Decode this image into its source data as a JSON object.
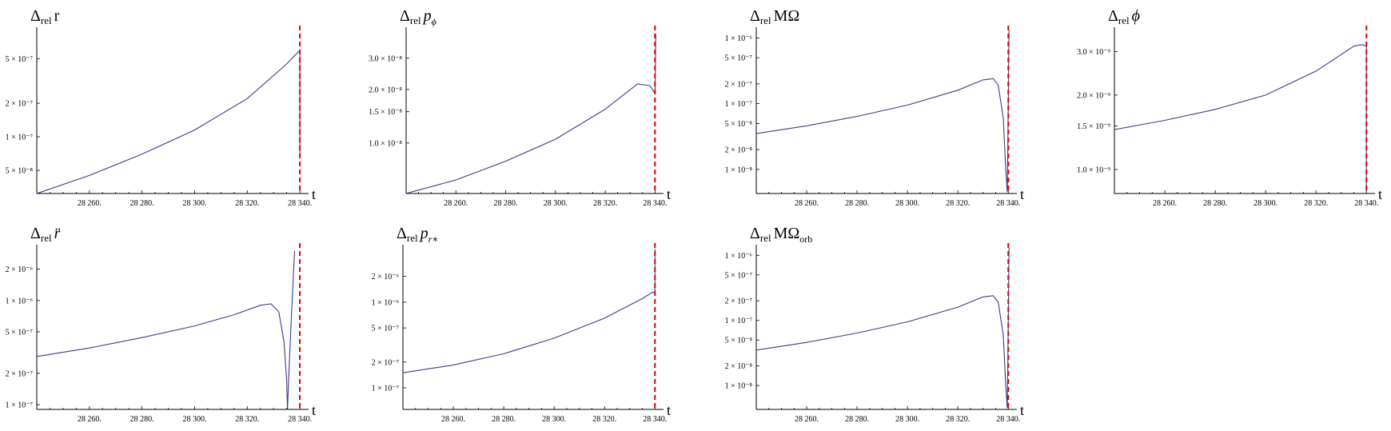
{
  "chart_data": [
    {
      "type": "line",
      "title_main": "Δ",
      "title_sub": "rel",
      "title_var": "r",
      "title_var_sub": "",
      "title_style": "roman",
      "xlabel": "t",
      "x_ticks": [
        "28 260.",
        "28 280.",
        "28 300.",
        "28 320.",
        "28 340."
      ],
      "y_ticks": [
        "5 × 10⁻⁸",
        "1 × 10⁻⁷",
        "2 × 10⁻⁷",
        "5 × 10⁻⁷"
      ],
      "y_scale": "log",
      "vline_x": 28340,
      "series": [
        {
          "x": [
            28240,
            28260,
            28280,
            28300,
            28320,
            28335,
            28339.5,
            28340,
            28340
          ],
          "y": [
            3.1e-08,
            4.5e-08,
            7e-08,
            1.15e-07,
            2.2e-07,
            4.5e-07,
            5.8e-07,
            5.8e-07,
            7e-08
          ]
        }
      ]
    },
    {
      "type": "line",
      "title_main": "Δ",
      "title_sub": "rel",
      "title_var": "p",
      "title_var_sub": "ϕ",
      "title_style": "italic",
      "xlabel": "t",
      "x_ticks": [
        "28 260.",
        "28 280.",
        "28 300.",
        "28 320.",
        "28 340."
      ],
      "y_ticks": [
        "1.0 × 10⁻⁸",
        "1.5 × 10⁻⁸",
        "2.0 × 10⁻⁸",
        "3.0 × 10⁻⁸"
      ],
      "y_scale": "log",
      "vline_x": 28340,
      "series": [
        {
          "x": [
            28240,
            28260,
            28280,
            28300,
            28320,
            28333,
            28338,
            28340,
            28340.3
          ],
          "y": [
            5.2e-09,
            6.2e-09,
            7.9e-09,
            1.05e-08,
            1.55e-08,
            2.15e-08,
            2.1e-08,
            1.9e-08,
            4.1e-08
          ]
        }
      ]
    },
    {
      "type": "line",
      "title_main": "Δ",
      "title_sub": "rel",
      "title_var": "MΩ",
      "title_var_sub": "",
      "title_style": "roman",
      "xlabel": "t",
      "x_ticks": [
        "28 260.",
        "28 280.",
        "28 300.",
        "28 320.",
        "28 340."
      ],
      "y_ticks": [
        "1 × 10⁻⁸",
        "2 × 10⁻⁸",
        "5 × 10⁻⁸",
        "1 × 10⁻⁷",
        "2 × 10⁻⁷",
        "5 × 10⁻⁷",
        "1 × 10⁻⁶"
      ],
      "y_scale": "log",
      "vline_x": 28340,
      "series": [
        {
          "x": [
            28240,
            28260,
            28280,
            28300,
            28320,
            28330,
            28334,
            28336,
            28338,
            28339,
            28339.6,
            28340,
            28340.3
          ],
          "y": [
            3.5e-08,
            4.6e-08,
            6.4e-08,
            9.5e-08,
            1.6e-07,
            2.3e-07,
            2.4e-07,
            1.9e-07,
            6e-08,
            1e-08,
            4.5e-09,
            1e-07,
            1.3e-06
          ]
        }
      ]
    },
    {
      "type": "line",
      "title_main": "Δ",
      "title_sub": "rel",
      "title_var": "ϕ",
      "title_var_sub": "",
      "title_style": "italic",
      "xlabel": "t",
      "x_ticks": [
        "28 260.",
        "28 280.",
        "28 300.",
        "28 320.",
        "28 340."
      ],
      "y_ticks": [
        "1.0 × 10⁻⁹",
        "1.5 × 10⁻⁹",
        "2.0 × 10⁻⁹",
        "3.0 × 10⁻⁹"
      ],
      "y_scale": "log",
      "vline_x": 28340,
      "series": [
        {
          "x": [
            28240,
            28260,
            28280,
            28300,
            28320,
            28335,
            28338,
            28340,
            28340
          ],
          "y": [
            1.45e-09,
            1.58e-09,
            1.75e-09,
            2e-09,
            2.5e-09,
            3.15e-09,
            3.2e-09,
            3.15e-09,
            8e-10
          ]
        }
      ]
    },
    {
      "type": "line",
      "title_main": "Δ",
      "title_sub": "rel",
      "title_var": "r̈",
      "title_var_sub": "",
      "title_style": "italic",
      "xlabel": "t",
      "x_ticks": [
        "28 260.",
        "28 280.",
        "28 300.",
        "28 320.",
        "28 340."
      ],
      "y_ticks": [
        "1 × 10⁻⁷",
        "2 × 10⁻⁷",
        "5 × 10⁻⁷",
        "1 × 10⁻⁶",
        "2 × 10⁻⁶"
      ],
      "y_scale": "log",
      "vline_x": 28340,
      "series": [
        {
          "x": [
            28240,
            28260,
            28280,
            28300,
            28315,
            28325,
            28329,
            28332,
            28334,
            28335,
            28335.3,
            28336,
            28337,
            28338
          ],
          "y": [
            2.9e-07,
            3.5e-07,
            4.4e-07,
            5.7e-07,
            7.3e-07,
            9e-07,
            9.3e-07,
            7.8e-07,
            4e-07,
            1.7e-07,
            9e-08,
            2.5e-07,
            9e-07,
            3e-06
          ]
        }
      ]
    },
    {
      "type": "line",
      "title_main": "Δ",
      "title_sub": "rel",
      "title_var": "p",
      "title_var_sub": "r∗",
      "title_style": "italic",
      "xlabel": "t",
      "x_ticks": [
        "28 260.",
        "28 280.",
        "28 300.",
        "28 320.",
        "28 340."
      ],
      "y_ticks": [
        "1 × 10⁻⁷",
        "2 × 10⁻⁷",
        "5 × 10⁻⁷",
        "1 × 10⁻⁶",
        "2 × 10⁻⁶"
      ],
      "y_scale": "log",
      "vline_x": 28340,
      "series": [
        {
          "x": [
            28240,
            28260,
            28280,
            28300,
            28320,
            28335,
            28339,
            28340,
            28340
          ],
          "y": [
            1.5e-07,
            1.85e-07,
            2.5e-07,
            3.8e-07,
            6.5e-07,
            1.1e-06,
            1.3e-06,
            1.3e-06,
            4.2e-06
          ]
        }
      ]
    },
    {
      "type": "line",
      "title_main": "Δ",
      "title_sub": "rel",
      "title_var": "MΩ",
      "title_var_sub": "orb",
      "title_style": "roman",
      "xlabel": "t",
      "x_ticks": [
        "28 260.",
        "28 280.",
        "28 300.",
        "28 320.",
        "28 340."
      ],
      "y_ticks": [
        "1 × 10⁻⁸",
        "2 × 10⁻⁸",
        "5 × 10⁻⁸",
        "1 × 10⁻⁷",
        "2 × 10⁻⁷",
        "5 × 10⁻⁷",
        "1 × 10⁻⁶"
      ],
      "y_scale": "log",
      "vline_x": 28340,
      "series": [
        {
          "x": [
            28240,
            28260,
            28280,
            28300,
            28320,
            28330,
            28334,
            28336,
            28338,
            28339,
            28339.6,
            28340,
            28340.3
          ],
          "y": [
            3.5e-08,
            4.6e-08,
            6.4e-08,
            9.5e-08,
            1.6e-07,
            2.3e-07,
            2.4e-07,
            1.9e-07,
            6e-08,
            1e-08,
            4.5e-09,
            1e-07,
            1.3e-06
          ]
        }
      ]
    }
  ]
}
